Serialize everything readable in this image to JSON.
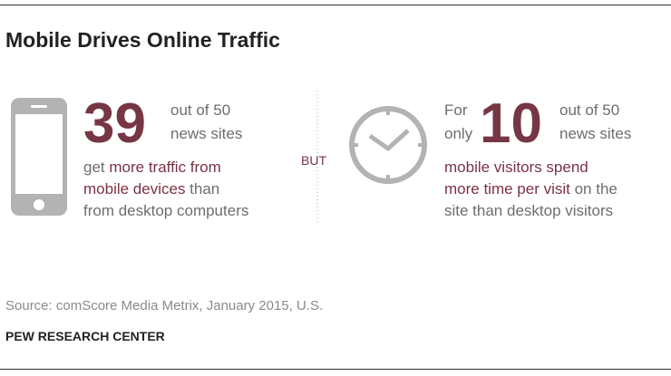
{
  "header": {
    "title": "Mobile Drives Online Traffic"
  },
  "left": {
    "number": 39,
    "out_of": "out of 50",
    "unit": "news sites",
    "lines": [
      [
        {
          "text": "get ",
          "highlight": false
        },
        {
          "text": "more traffic from",
          "highlight": true
        }
      ],
      [
        {
          "text": "mobile devices",
          "highlight": true
        },
        {
          "text": " than",
          "highlight": false
        }
      ],
      [
        {
          "text": "from desktop computers",
          "highlight": false
        }
      ]
    ]
  },
  "divider": "BUT",
  "right": {
    "prefix_1": "For",
    "prefix_2": "only",
    "number": 10,
    "out_of": "out of 50",
    "unit": "news sites",
    "lines": [
      [
        {
          "text": "mobile visitors spend",
          "highlight": true
        }
      ],
      [
        {
          "text": "more time per visit",
          "highlight": true
        },
        {
          "text": " on the",
          "highlight": false
        }
      ],
      [
        {
          "text": "site than desktop visitors",
          "highlight": false
        }
      ]
    ]
  },
  "footer": {
    "source": "Source: comScore Media Metrix, January 2015, U.S.",
    "credit": "PEW RESEARCH CENTER"
  }
}
